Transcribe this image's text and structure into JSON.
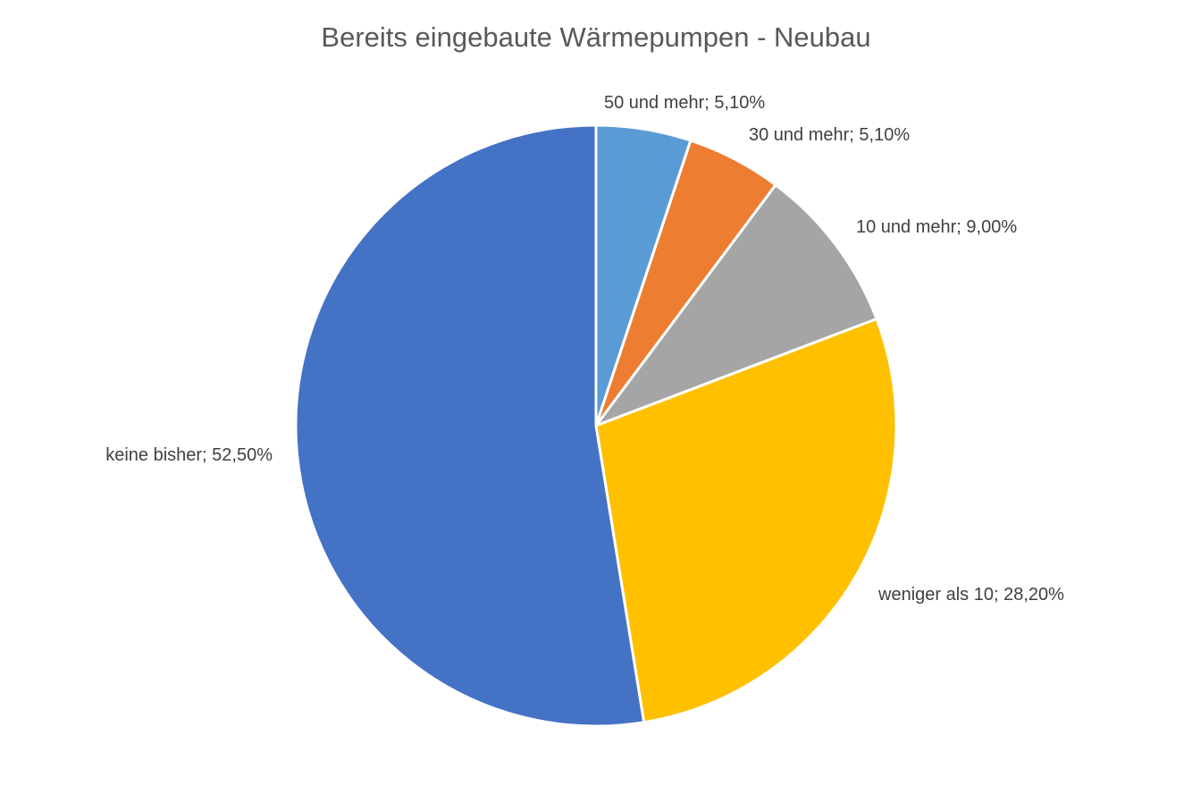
{
  "chart_data": {
    "type": "pie",
    "title": "Bereits eingebaute Wärmepumpen - Neubau",
    "categories": [
      "50 und mehr",
      "30 und mehr",
      "10 und mehr",
      "weniger als 10",
      "keine bisher"
    ],
    "values": [
      5.1,
      5.1,
      9.0,
      28.2,
      52.5
    ],
    "value_labels": [
      "5,10%",
      "5,10%",
      "9,00%",
      "28,20%",
      "52,50%"
    ],
    "data_labels": [
      "50 und mehr; 5,10%",
      "30 und mehr; 5,10%",
      "10 und mehr; 9,00%",
      "weniger als 10; 28,20%",
      "keine bisher; 52,50%"
    ],
    "colors": [
      "#5B9BD5",
      "#ED7D31",
      "#A5A5A5",
      "#FFC000",
      "#4472C4"
    ],
    "start_angle": "12 o'clock",
    "direction": "clockwise",
    "legend": "none",
    "label_position": "outside"
  }
}
